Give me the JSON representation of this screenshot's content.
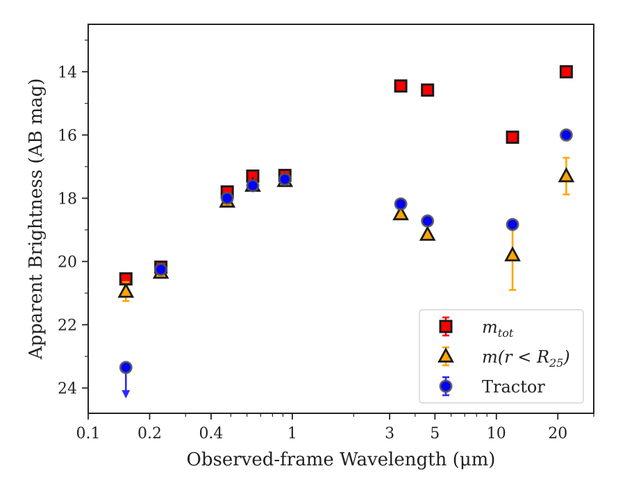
{
  "chart_data": {
    "type": "scatter",
    "title": "",
    "xlabel": "Observed-frame Wavelength (μm)",
    "ylabel": "Apparent Brightness (AB mag)",
    "xscale": "log",
    "xlim": [
      0.1,
      30
    ],
    "ylim": [
      24.8,
      12.5
    ],
    "y_inverted": true,
    "x_ticks": [
      0.1,
      0.2,
      0.4,
      1,
      3,
      5,
      10,
      20
    ],
    "x_tick_labels": [
      "0.1",
      "0.2",
      "0.4",
      "1",
      "3",
      "5",
      "10",
      "20"
    ],
    "y_ticks": [
      14,
      16,
      18,
      20,
      22,
      24
    ],
    "y_tick_labels": [
      "14",
      "16",
      "18",
      "20",
      "22",
      "24"
    ],
    "grid": false,
    "legend_position": "lower-right",
    "series": [
      {
        "name": "m_tot",
        "label_html": "m<tspan font-size='16' dy='6'>tot</tspan>",
        "marker": "square",
        "face_color": "#ff0000",
        "edge_color": "#1a1a1a",
        "err_color": "#ff0000",
        "points": [
          {
            "x": 0.153,
            "y": 20.55,
            "err": 0.15
          },
          {
            "x": 0.227,
            "y": 20.18,
            "err": 0.12
          },
          {
            "x": 0.48,
            "y": 17.8,
            "err": 0.05
          },
          {
            "x": 0.64,
            "y": 17.3,
            "err": 0.05
          },
          {
            "x": 0.92,
            "y": 17.28,
            "err": 0.05
          },
          {
            "x": 3.4,
            "y": 14.45,
            "err": 0.05
          },
          {
            "x": 4.6,
            "y": 14.58,
            "err": 0.05
          },
          {
            "x": 12.0,
            "y": 16.07,
            "err": 0.05
          },
          {
            "x": 22.0,
            "y": 14.0,
            "err": 0.05
          }
        ]
      },
      {
        "name": "m(r < R_25)",
        "label_html": "m(r &lt; R<tspan font-size='16' dy='6'>25</tspan><tspan dy='-6'>)</tspan>",
        "marker": "triangle",
        "face_color": "#ffa500",
        "edge_color": "#1a1a1a",
        "err_color": "#ffa500",
        "points": [
          {
            "x": 0.153,
            "y": 20.95,
            "err": 0.3
          },
          {
            "x": 0.227,
            "y": 20.35,
            "err": 0.12
          },
          {
            "x": 0.48,
            "y": 18.1,
            "err": 0.05
          },
          {
            "x": 0.64,
            "y": 17.6,
            "err": 0.05
          },
          {
            "x": 0.92,
            "y": 17.45,
            "err": 0.05
          },
          {
            "x": 3.4,
            "y": 18.5,
            "err": 0.05
          },
          {
            "x": 4.6,
            "y": 19.15,
            "err": 0.05
          },
          {
            "x": 12.0,
            "y": 19.8,
            "err": 1.1
          },
          {
            "x": 22.0,
            "y": 17.3,
            "err": 0.58
          }
        ]
      },
      {
        "name": "Tractor",
        "marker": "circle",
        "face_color": "#0000ff",
        "edge_color": "#555555",
        "err_color": "#2a2aff",
        "points": [
          {
            "x": 0.153,
            "y": 23.35,
            "upper_limit": true
          },
          {
            "x": 0.227,
            "y": 20.25,
            "err": 0.05
          },
          {
            "x": 0.48,
            "y": 18.0,
            "err": 0.05
          },
          {
            "x": 0.64,
            "y": 17.6,
            "err": 0.05
          },
          {
            "x": 0.92,
            "y": 17.4,
            "err": 0.05
          },
          {
            "x": 3.4,
            "y": 18.18,
            "err": 0.05
          },
          {
            "x": 4.6,
            "y": 18.72,
            "err": 0.05
          },
          {
            "x": 12.0,
            "y": 18.83,
            "err": 0.05
          },
          {
            "x": 22.0,
            "y": 16.0,
            "err": 0.05
          }
        ]
      }
    ]
  }
}
